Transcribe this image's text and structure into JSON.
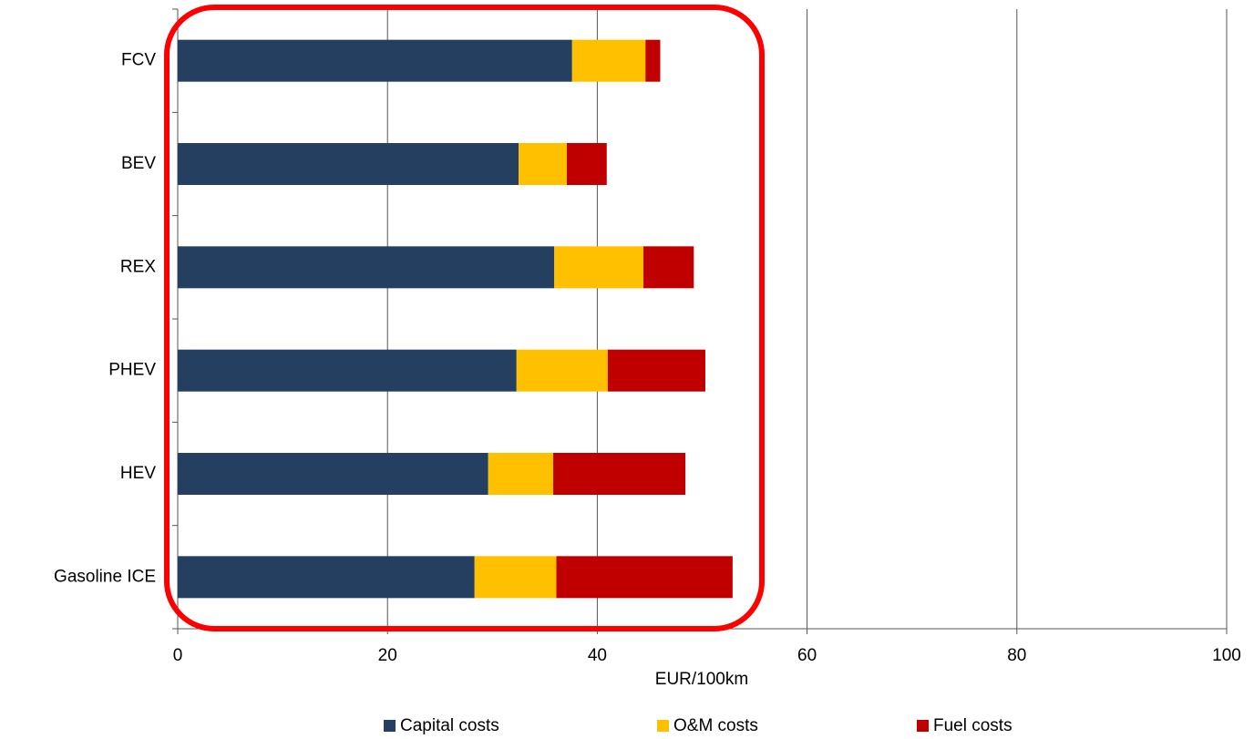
{
  "chart_data": {
    "type": "stacked-bar-horizontal",
    "x_label": "EUR/100km",
    "categories": [
      "FCV",
      "BEV",
      "REX",
      "PHEV",
      "HEV",
      "Gasoline ICE"
    ],
    "series": [
      {
        "name": "Capital costs",
        "color": "#243f60",
        "values": [
          37.6,
          32.5,
          35.9,
          32.3,
          29.6,
          28.3
        ]
      },
      {
        "name": "O&M costs",
        "color": "#ffc000",
        "values": [
          7.0,
          4.6,
          8.5,
          8.7,
          6.2,
          7.8
        ]
      },
      {
        "name": "Fuel costs",
        "color": "#c00000",
        "values": [
          1.4,
          3.8,
          4.8,
          9.3,
          12.6,
          16.8
        ]
      }
    ],
    "xlim": [
      0,
      100
    ],
    "xticks": [
      0,
      20,
      40,
      60,
      80,
      100
    ],
    "grid": true,
    "legend": "bottom"
  }
}
